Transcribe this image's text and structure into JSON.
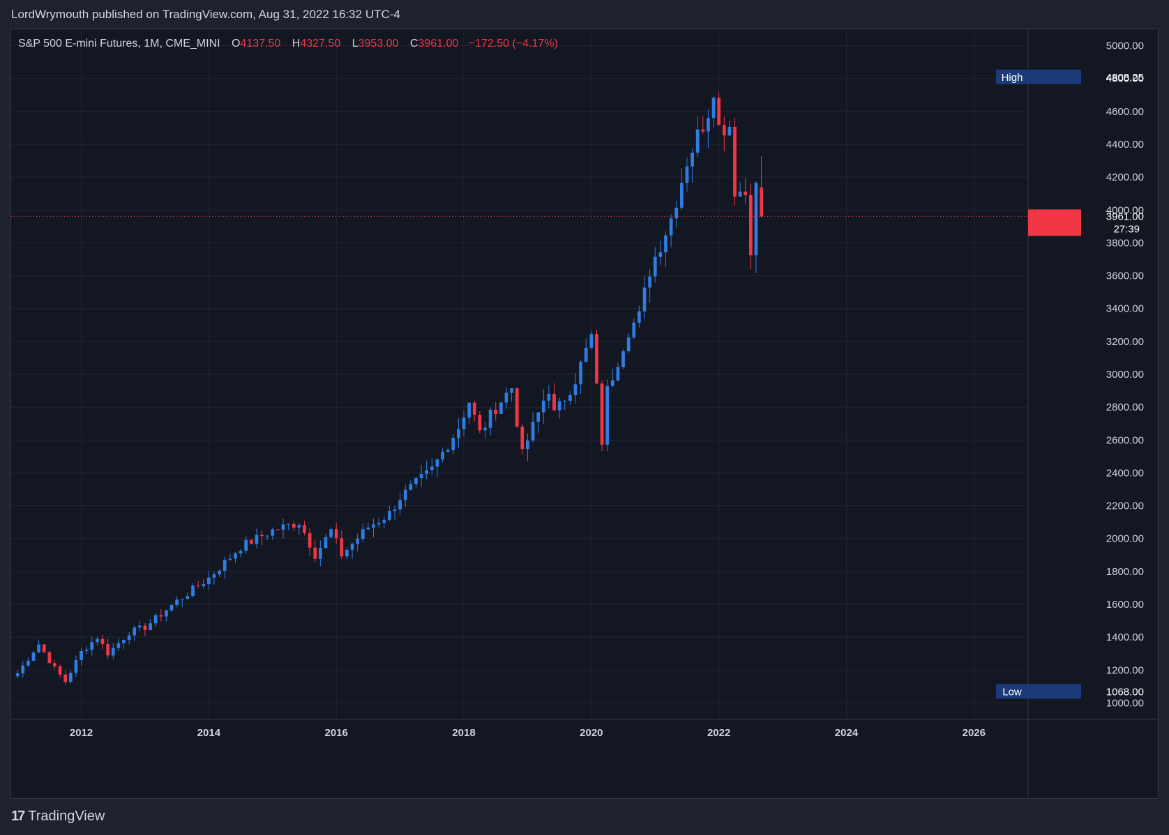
{
  "attribution": "LordWrymouth published on TradingView.com, Aug 31, 2022 16:32 UTC-4",
  "legend": {
    "symbol": "S&P 500 E-mini Futures, 1M, CME_MINI",
    "open_label": "O",
    "open": "4137.50",
    "high_label": "H",
    "high": "4327.50",
    "low_label": "L",
    "low": "3953.00",
    "close_label": "C",
    "close": "3961.00",
    "change": "−172.50 (−4.17%)"
  },
  "price_labels": {
    "high_tag": "High",
    "high_value": "4808.25",
    "low_tag": "Low",
    "low_value": "1068.00",
    "last_price": "3961.00",
    "countdown": "27:39"
  },
  "footer": {
    "brand": "TradingView",
    "mark": "17"
  },
  "colors": {
    "up": "#2f7de1",
    "down": "#f23645",
    "background": "#131722",
    "grid": "#232733",
    "text": "#d1d4dc"
  },
  "chart_data": {
    "type": "candlestick",
    "title": "S&P 500 E-mini Futures, 1M, CME_MINI",
    "interval": "1M",
    "xlabel": "",
    "ylabel": "",
    "x_ticks": [
      "2012",
      "2014",
      "2016",
      "2018",
      "2020",
      "2022",
      "2024",
      "2026"
    ],
    "y_ticks": [
      "1000.00",
      "1200.00",
      "1400.00",
      "1600.00",
      "1800.00",
      "2000.00",
      "2200.00",
      "2400.00",
      "2600.00",
      "2800.00",
      "3000.00",
      "3200.00",
      "3400.00",
      "3600.00",
      "3800.00",
      "4000.00",
      "4200.00",
      "4400.00",
      "4600.00",
      "4800.00",
      "5000.00"
    ],
    "ylim": [
      900,
      5100
    ],
    "x_range": [
      2010.9,
      2026.85
    ],
    "grid": true,
    "all_time_high": 4808.25,
    "range_low": 1068.0,
    "last": 3961.0,
    "anchors": [
      [
        2011.0,
        1180
      ],
      [
        2011.33,
        1360
      ],
      [
        2011.58,
        1210
      ],
      [
        2011.75,
        1130
      ],
      [
        2012.0,
        1310
      ],
      [
        2012.25,
        1400
      ],
      [
        2012.42,
        1300
      ],
      [
        2012.75,
        1430
      ],
      [
        2013.0,
        1460
      ],
      [
        2013.5,
        1620
      ],
      [
        2014.0,
        1760
      ],
      [
        2014.5,
        1950
      ],
      [
        2015.0,
        2050
      ],
      [
        2015.42,
        2100
      ],
      [
        2015.67,
        1900
      ],
      [
        2015.92,
        2050
      ],
      [
        2016.08,
        1900
      ],
      [
        2016.5,
        2070
      ],
      [
        2016.83,
        2150
      ],
      [
        2017.0,
        2250
      ],
      [
        2017.5,
        2420
      ],
      [
        2017.92,
        2680
      ],
      [
        2018.08,
        2840
      ],
      [
        2018.25,
        2640
      ],
      [
        2018.5,
        2800
      ],
      [
        2018.75,
        2920
      ],
      [
        2018.92,
        2500
      ],
      [
        2019.0,
        2600
      ],
      [
        2019.33,
        2920
      ],
      [
        2019.42,
        2750
      ],
      [
        2019.75,
        2970
      ],
      [
        2020.0,
        3230
      ],
      [
        2020.17,
        2580
      ],
      [
        2020.25,
        2900
      ],
      [
        2020.58,
        3270
      ],
      [
        2020.75,
        3350
      ],
      [
        2020.92,
        3640
      ],
      [
        2021.25,
        3950
      ],
      [
        2021.5,
        4300
      ],
      [
        2021.83,
        4600
      ],
      [
        2021.92,
        4760
      ],
      [
        2022.0,
        4500
      ],
      [
        2022.17,
        4520
      ],
      [
        2022.25,
        4130
      ],
      [
        2022.42,
        4100
      ],
      [
        2022.5,
        3780
      ],
      [
        2022.58,
        4140
      ],
      [
        2022.67,
        3961
      ]
    ]
  }
}
